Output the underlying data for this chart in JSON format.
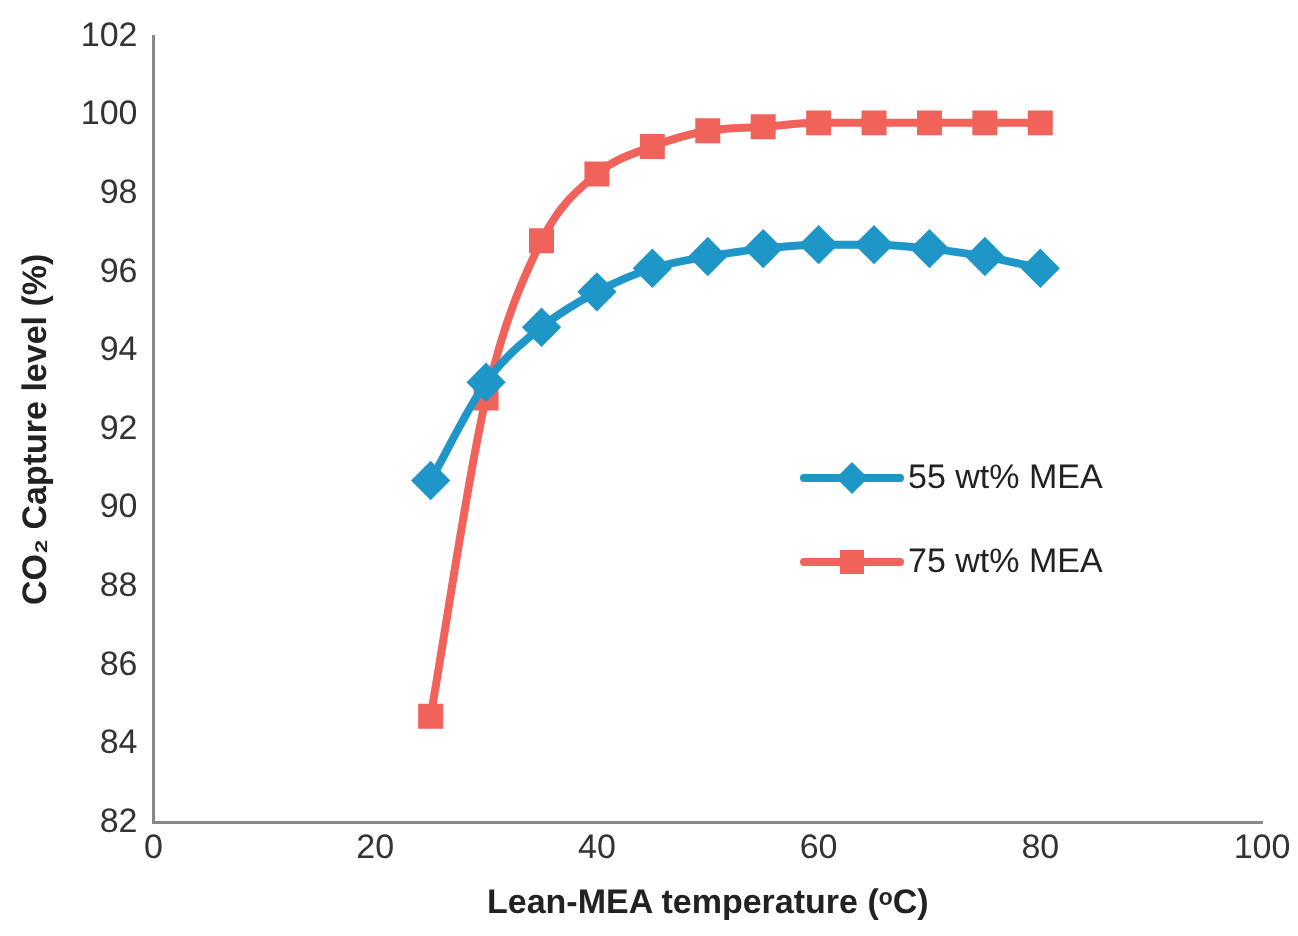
{
  "chart_data": {
    "type": "line",
    "xlabel": "Lean-MEA temperature (ᵒC)",
    "ylabel": "CO₂ Capture level (%)",
    "x": [
      25,
      30,
      35,
      40,
      45,
      50,
      55,
      60,
      65,
      70,
      75,
      80
    ],
    "series": [
      {
        "name": "55 wt% MEA",
        "color": "#1f96c8",
        "marker": "diamond",
        "values": [
          90.7,
          93.2,
          94.6,
          95.5,
          96.1,
          96.4,
          96.6,
          96.7,
          96.7,
          96.6,
          96.4,
          96.1
        ]
      },
      {
        "name": "75 wt% MEA",
        "color": "#f0625a",
        "marker": "square",
        "values": [
          84.7,
          92.8,
          96.8,
          98.5,
          99.2,
          99.6,
          99.7,
          99.8,
          99.8,
          99.8,
          99.8,
          99.8
        ]
      }
    ],
    "xlim": [
      0,
      100
    ],
    "xticks": [
      0,
      20,
      40,
      60,
      80,
      100
    ],
    "ylim": [
      82,
      102
    ],
    "yticks": [
      82,
      84,
      86,
      88,
      90,
      92,
      94,
      96,
      98,
      100,
      102
    ],
    "grid": false,
    "legend": "right",
    "line_style": "solid"
  }
}
